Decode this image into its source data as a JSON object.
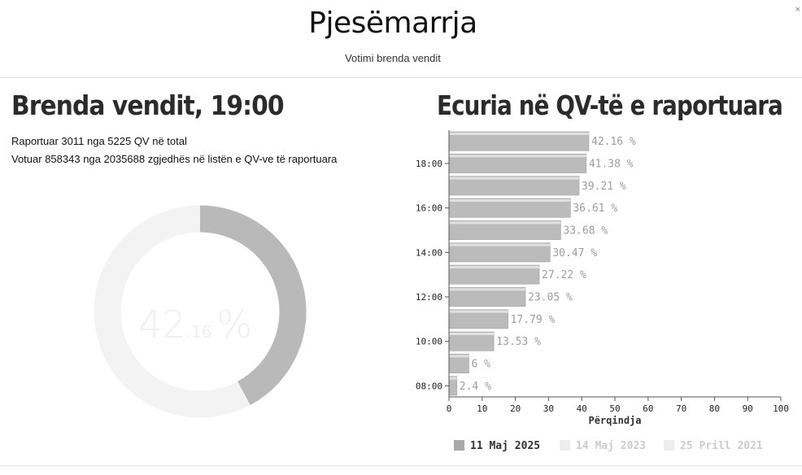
{
  "header": {
    "title": "Pjesëmarrja",
    "subtitle": "Votimi brenda vendit",
    "close_icon": "×"
  },
  "left_panel": {
    "heading": "Brenda vendit, 19:00",
    "reported_line": "Raportuar 3011 nga 5225 QV në total",
    "voted_line": "Votuar 858343 nga 2035688 zgjedhës në listën e QV-ve të raportuara",
    "donut": {
      "value_fraction": 0.4216,
      "label_integer": "42",
      "label_decimal": ".16",
      "label_percent": "%",
      "fill_color": "#b9b9b9",
      "track_color": "#f3f3f3"
    }
  },
  "right_panel": {
    "heading": "Ecuria në QV-të e raportuara"
  },
  "chart_data": {
    "type": "bar",
    "orientation": "horizontal",
    "categories": [
      "08:00",
      "09:00",
      "10:00",
      "11:00",
      "12:00",
      "13:00",
      "14:00",
      "15:00",
      "16:00",
      "17:00",
      "18:00",
      "19:00"
    ],
    "y_tick_labels": [
      "08:00",
      "10:00",
      "12:00",
      "14:00",
      "16:00",
      "18:00"
    ],
    "series": [
      {
        "name": "11 Maj 2025",
        "values": [
          2.4,
          6,
          13.53,
          17.79,
          23.05,
          27.22,
          30.47,
          33.68,
          36.61,
          39.21,
          41.38,
          42.16
        ],
        "data_labels": [
          "2.4 %",
          "6 %",
          "13.53 %",
          "17.79 %",
          "23.05 %",
          "27.22 %",
          "30.47 %",
          "33.68 %",
          "36.61 %",
          "39.21 %",
          "41.38 %",
          "42.16 %"
        ],
        "color": "#bbbbbb"
      }
    ],
    "legend": [
      {
        "name": "11 Maj 2025",
        "color": "#a9a9a9",
        "text_color": "#333333"
      },
      {
        "name": "14 Maj 2023",
        "color": "#eeeeee",
        "text_color": "#cccccc"
      },
      {
        "name": "25 Prill 2021",
        "color": "#eeeeee",
        "text_color": "#cccccc"
      }
    ],
    "x_ticks": [
      "0",
      "10",
      "20",
      "30",
      "40",
      "50",
      "60",
      "70",
      "80",
      "90",
      "100"
    ],
    "xlabel": "Përqindja",
    "ylabel": "",
    "xlim": [
      0,
      100
    ],
    "legend_position": "bottom"
  }
}
